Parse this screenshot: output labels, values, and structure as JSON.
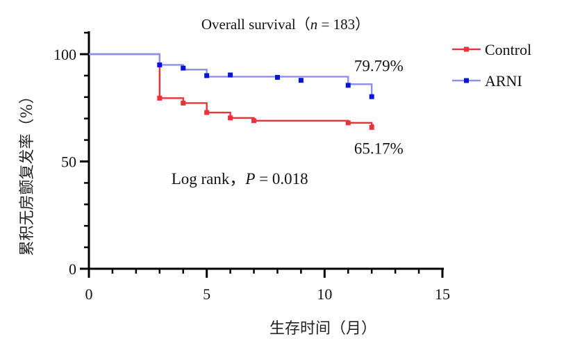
{
  "chart_data": {
    "type": "line",
    "step": true,
    "title": "Overall survival（n = 183）",
    "title_parts": {
      "pre": "Overall survival（",
      "n_italic": "n",
      "post": " = 183）"
    },
    "xlabel": "生存时间（月）",
    "ylabel": "累积无房颤复发率（%）",
    "xlim": [
      0,
      15
    ],
    "ylim": [
      0,
      100
    ],
    "x_ticks": [
      0,
      5,
      10,
      15
    ],
    "y_ticks": [
      0,
      50,
      100
    ],
    "grid": false,
    "legend_position": "top-right",
    "series": [
      {
        "name": "Control",
        "color": "#e8333a",
        "steps": [
          [
            0,
            100
          ],
          [
            3,
            79.5
          ],
          [
            4,
            77.2
          ],
          [
            5,
            72.8
          ],
          [
            6,
            70.3
          ],
          [
            7,
            69
          ],
          [
            11,
            68
          ],
          [
            12,
            67
          ],
          [
            12.05,
            65.17
          ]
        ],
        "censor_x": [
          3,
          4,
          5,
          6,
          7,
          11,
          12
        ],
        "censor_y": [
          79.5,
          77.2,
          72.8,
          70.3,
          69,
          68,
          65.9
        ]
      },
      {
        "name": "ARNI",
        "color": "#8f90ea",
        "marker_color": "#0a14d6",
        "steps": [
          [
            0,
            100
          ],
          [
            3,
            95
          ],
          [
            4,
            92.8
          ],
          [
            5,
            89.5
          ],
          [
            11,
            86
          ],
          [
            12,
            79.79
          ]
        ],
        "censor_x": [
          3,
          4,
          5,
          6,
          8,
          9,
          11,
          12
        ],
        "censor_y": [
          95,
          93.5,
          90,
          90.3,
          89.2,
          87.8,
          85.5,
          80.2
        ]
      }
    ],
    "annotations": [
      {
        "name": "arni-final",
        "text": "79.79%",
        "at": [
          12.3,
          92
        ]
      },
      {
        "name": "control-final",
        "text": "65.17%",
        "at": [
          12.3,
          53.5
        ]
      },
      {
        "name": "log-rank",
        "parts": {
          "pre": "Log rank，",
          "p": "P",
          "post": " = 0.018"
        },
        "at": [
          6.4,
          39.5
        ]
      }
    ]
  }
}
